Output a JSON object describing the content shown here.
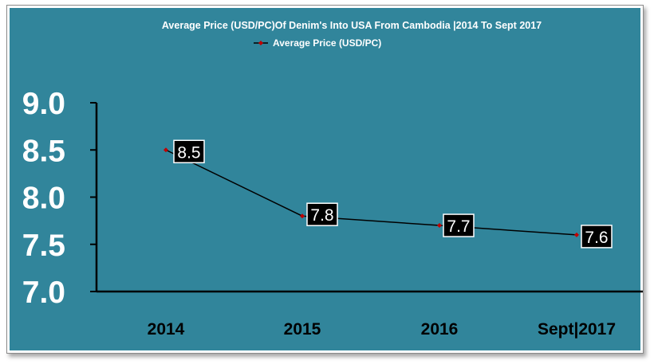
{
  "colors": {
    "background": "#31859b",
    "line": "#000000",
    "marker": "#c00000",
    "axis": "#000000",
    "text": "#ffffff",
    "xtick_text": "#000000",
    "label_box": "#000000",
    "label_border": "#ffffff"
  },
  "chart_data": {
    "type": "line",
    "title": "Average Price (USD/PC)Of Denim's Into USA From Cambodia |2014 To Sept 2017",
    "legend": [
      "Average Price (USD/PC)"
    ],
    "legend_position": "top-center",
    "categories": [
      "2014",
      "2015",
      "2016",
      "Sept|2017"
    ],
    "series": [
      {
        "name": "Average Price (USD/PC)",
        "values": [
          8.5,
          7.8,
          7.7,
          7.6
        ],
        "labels": [
          "8.5",
          "7.8",
          "7.7",
          "7.6"
        ]
      }
    ],
    "ylim": [
      7.0,
      9.0
    ],
    "yticks": [
      9.0,
      8.5,
      8.0,
      7.5,
      7.0
    ],
    "ytick_labels": [
      "9.0",
      "8.5",
      "8.0",
      "7.5",
      "7.0"
    ],
    "xlabel": "",
    "ylabel": "",
    "grid": false
  }
}
